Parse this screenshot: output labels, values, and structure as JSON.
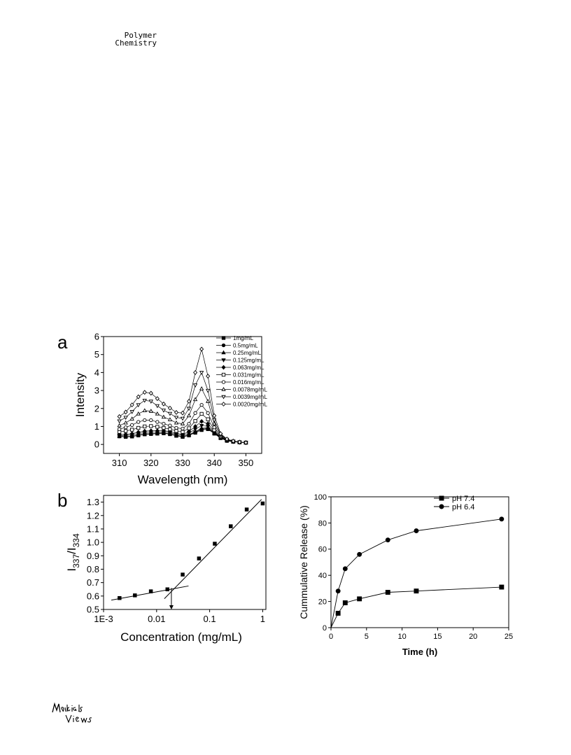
{
  "header": {
    "journal_line1": "Polymer",
    "journal_line2": "Chemistry"
  },
  "footer": {
    "logo_text": "MaterialsViews"
  },
  "panels": {
    "a": "a",
    "b": "b"
  },
  "chart_data": [
    {
      "id": "a",
      "type": "line",
      "title": "",
      "xlabel": "Wavelength (nm)",
      "ylabel": "Intensity",
      "xlim": [
        305,
        355
      ],
      "ylim": [
        -0.5,
        6
      ],
      "x_ticks": [
        310,
        320,
        330,
        340,
        350
      ],
      "y_ticks": [
        0,
        1,
        2,
        3,
        4,
        5,
        6
      ],
      "legend_position": "top-right",
      "x": [
        310,
        312,
        314,
        316,
        318,
        320,
        322,
        324,
        326,
        328,
        330,
        332,
        334,
        336,
        338,
        340,
        342,
        344,
        346,
        348,
        350
      ],
      "series": [
        {
          "name": "1mg/mL",
          "marker": "square-filled",
          "values": [
            0.45,
            0.42,
            0.44,
            0.5,
            0.56,
            0.58,
            0.6,
            0.62,
            0.57,
            0.48,
            0.42,
            0.5,
            0.65,
            0.8,
            0.85,
            0.6,
            0.35,
            0.2,
            0.15,
            0.12,
            0.1
          ]
        },
        {
          "name": "0.5mg/mL",
          "marker": "circle-filled",
          "values": [
            0.45,
            0.43,
            0.45,
            0.51,
            0.57,
            0.59,
            0.61,
            0.63,
            0.58,
            0.49,
            0.43,
            0.52,
            0.68,
            0.85,
            0.88,
            0.62,
            0.36,
            0.2,
            0.15,
            0.12,
            0.1
          ]
        },
        {
          "name": "0.25mg/mL",
          "marker": "triangle-up-filled",
          "values": [
            0.45,
            0.44,
            0.46,
            0.52,
            0.58,
            0.6,
            0.62,
            0.63,
            0.59,
            0.5,
            0.44,
            0.54,
            0.72,
            0.9,
            0.92,
            0.64,
            0.37,
            0.21,
            0.15,
            0.12,
            0.1
          ]
        },
        {
          "name": "0.125mg/mL",
          "marker": "triangle-down-filled",
          "values": [
            0.5,
            0.5,
            0.53,
            0.6,
            0.66,
            0.68,
            0.69,
            0.7,
            0.65,
            0.56,
            0.5,
            0.62,
            0.85,
            1.05,
            1.0,
            0.68,
            0.38,
            0.22,
            0.16,
            0.12,
            0.1
          ]
        },
        {
          "name": "0.063mg/mL",
          "marker": "diamond-filled",
          "values": [
            0.55,
            0.56,
            0.6,
            0.68,
            0.74,
            0.76,
            0.76,
            0.76,
            0.72,
            0.62,
            0.56,
            0.72,
            1.0,
            1.28,
            1.15,
            0.72,
            0.4,
            0.22,
            0.16,
            0.12,
            0.1
          ]
        },
        {
          "name": "0.031mg/mL",
          "marker": "square-open",
          "values": [
            0.7,
            0.75,
            0.82,
            0.92,
            1.0,
            1.02,
            0.98,
            0.92,
            0.85,
            0.75,
            0.7,
            0.9,
            1.3,
            1.7,
            1.4,
            0.8,
            0.42,
            0.23,
            0.16,
            0.12,
            0.1
          ]
        },
        {
          "name": "0.016mg/mL",
          "marker": "circle-open",
          "values": [
            0.85,
            0.95,
            1.08,
            1.25,
            1.35,
            1.35,
            1.25,
            1.15,
            1.05,
            0.92,
            0.88,
            1.15,
            1.75,
            2.2,
            1.75,
            0.95,
            0.45,
            0.24,
            0.17,
            0.13,
            0.1
          ]
        },
        {
          "name": "0.0078mg/mL",
          "marker": "triangle-up-open",
          "values": [
            1.05,
            1.2,
            1.42,
            1.7,
            1.88,
            1.85,
            1.7,
            1.52,
            1.38,
            1.2,
            1.15,
            1.6,
            2.5,
            3.1,
            2.4,
            1.15,
            0.5,
            0.26,
            0.18,
            0.13,
            0.1
          ]
        },
        {
          "name": "0.0039mg/mL",
          "marker": "triangle-down-open",
          "values": [
            1.3,
            1.5,
            1.82,
            2.2,
            2.45,
            2.4,
            2.15,
            1.9,
            1.72,
            1.5,
            1.45,
            2.0,
            3.3,
            4.0,
            3.0,
            1.35,
            0.55,
            0.28,
            0.18,
            0.13,
            0.1
          ]
        },
        {
          "name": "0.0020mg/mL",
          "marker": "diamond-open",
          "values": [
            1.55,
            1.8,
            2.2,
            2.65,
            2.9,
            2.85,
            2.55,
            2.25,
            2.02,
            1.78,
            1.75,
            2.4,
            4.0,
            5.3,
            3.8,
            1.6,
            0.6,
            0.3,
            0.19,
            0.13,
            0.1
          ]
        }
      ]
    },
    {
      "id": "b-left",
      "type": "scatter",
      "title": "",
      "xlabel": "Concentration (mg/mL)",
      "ylabel": "I337/I334",
      "ylabel_parts": {
        "main1": "I",
        "sub1": "337",
        "sep": "/I",
        "sub2": "334"
      },
      "xscale": "log",
      "xlim": [
        0.001,
        1.15
      ],
      "ylim": [
        0.5,
        1.35
      ],
      "x_ticks": [
        0.001,
        0.01,
        0.1,
        1
      ],
      "x_tick_labels": [
        "1E-3",
        "0.01",
        "0.1",
        "1"
      ],
      "y_ticks": [
        0.5,
        0.6,
        0.7,
        0.8,
        0.9,
        1.0,
        1.1,
        1.2,
        1.3
      ],
      "y_tick_labels": [
        "0.5",
        "0.6",
        "0.7",
        "0.8",
        "0.9",
        "1.0",
        "1.1",
        "1.2",
        "1.3"
      ],
      "series": [
        {
          "name": "",
          "marker": "square-filled",
          "x": [
            0.002,
            0.0039,
            0.0078,
            0.016,
            0.031,
            0.063,
            0.125,
            0.25,
            0.5,
            1
          ],
          "values": [
            0.585,
            0.605,
            0.635,
            0.65,
            0.76,
            0.88,
            0.99,
            1.12,
            1.245,
            1.29
          ]
        }
      ],
      "fit_lines": [
        {
          "x": [
            0.0014,
            0.04
          ],
          "values": [
            0.57,
            0.675
          ]
        },
        {
          "x": [
            0.014,
            0.95
          ],
          "values": [
            0.58,
            1.32
          ]
        }
      ],
      "cmc_arrow": {
        "x": 0.019,
        "from": 0.66,
        "to": 0.5
      }
    },
    {
      "id": "b-right",
      "type": "line",
      "title": "",
      "xlabel": "Time (h)",
      "ylabel": "Cummulative Release (%)",
      "xlim": [
        0,
        25
      ],
      "ylim": [
        0,
        100
      ],
      "x_ticks": [
        0,
        5,
        10,
        15,
        20,
        25
      ],
      "y_ticks": [
        0,
        20,
        40,
        60,
        80,
        100
      ],
      "legend_position": "top-right",
      "x": [
        0,
        1,
        2,
        4,
        8,
        12,
        24
      ],
      "series": [
        {
          "name": "pH 7.4",
          "marker": "square-filled",
          "values": [
            0,
            11,
            19,
            22,
            27,
            28,
            31
          ]
        },
        {
          "name": "pH 6.4",
          "marker": "circle-filled",
          "values": [
            0,
            28,
            45,
            56,
            67,
            74,
            83
          ]
        }
      ]
    }
  ]
}
